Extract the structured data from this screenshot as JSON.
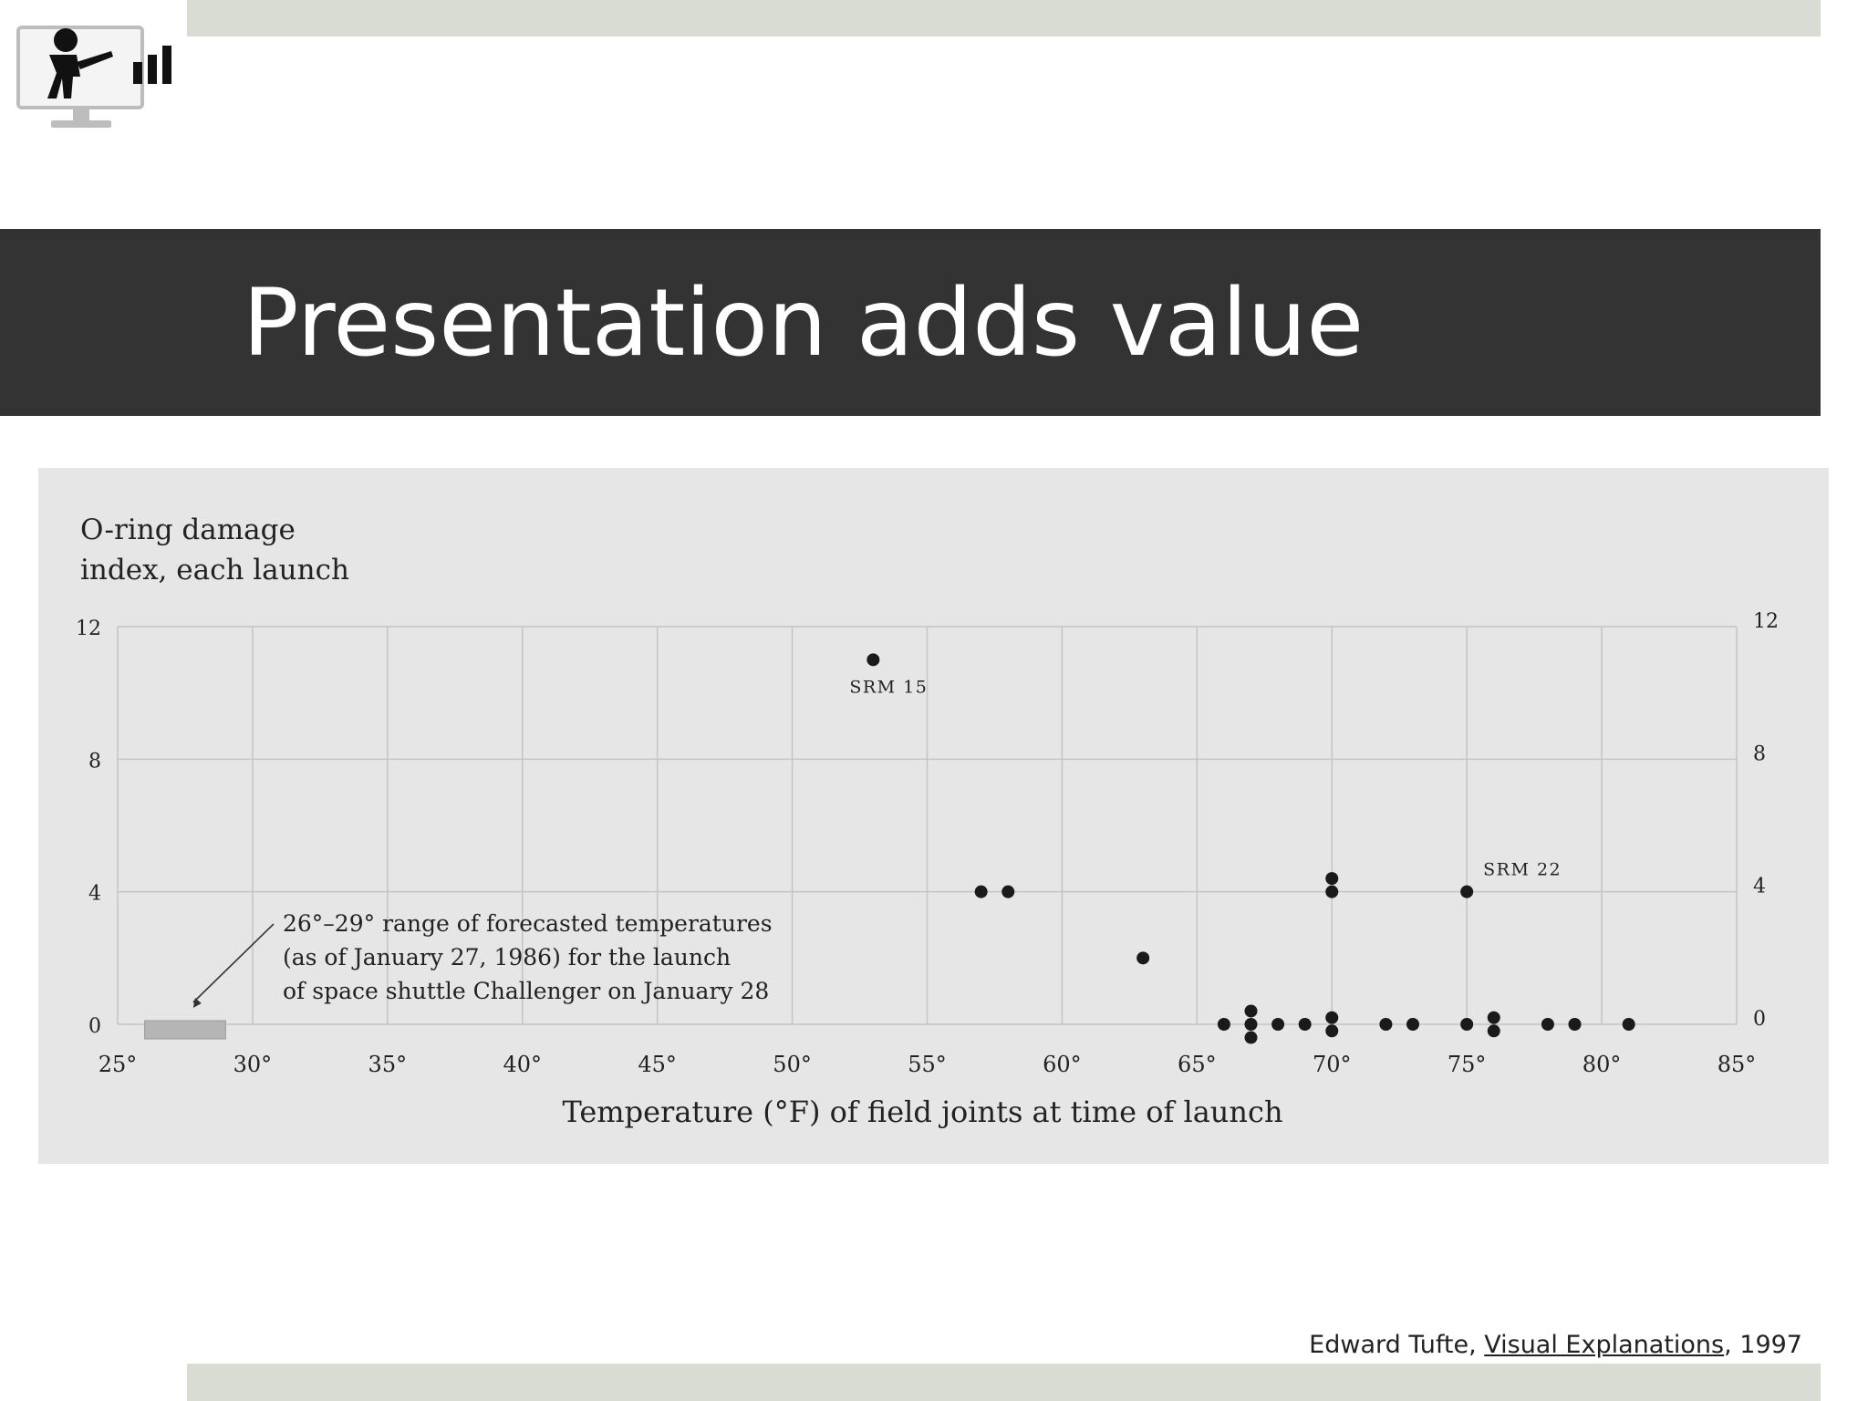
{
  "slide": {
    "title": "Presentation adds value",
    "credit": {
      "author": "Edward Tufte, ",
      "book": "Visual Explanations",
      "year": ", 1997"
    }
  },
  "logo": {
    "icon": "presenter-with-bar-chart-icon"
  },
  "colors": {
    "title_bar": "#333333",
    "strip": "#d9dcd3",
    "chart_panel": "#e6e6e6",
    "grid": "#c4c4c4",
    "points": "#1a1a1a",
    "forecast_range": "#b5b5b5"
  },
  "chart_data": {
    "type": "scatter",
    "title": "",
    "ylabel": [
      "O-ring damage",
      "index, each launch"
    ],
    "xlabel": "Temperature (°F) of field joints at time of launch",
    "xlim": [
      25,
      85
    ],
    "ylim": [
      0,
      12
    ],
    "x_ticks": [
      25,
      30,
      35,
      40,
      45,
      50,
      55,
      60,
      65,
      70,
      75,
      80,
      85
    ],
    "x_tick_labels": [
      "25°",
      "30°",
      "35°",
      "40°",
      "45°",
      "50°",
      "55°",
      "60°",
      "65°",
      "70°",
      "75°",
      "80°",
      "85°"
    ],
    "y_ticks": [
      0,
      4,
      8,
      12
    ],
    "y_tick_labels": [
      "0",
      "4",
      "8",
      "12"
    ],
    "grid": true,
    "points": [
      {
        "x": 53,
        "y": 11
      },
      {
        "x": 57,
        "y": 4
      },
      {
        "x": 58,
        "y": 4
      },
      {
        "x": 63,
        "y": 2
      },
      {
        "x": 70,
        "y": 4.4
      },
      {
        "x": 70,
        "y": 4
      },
      {
        "x": 75,
        "y": 4
      },
      {
        "x": 66,
        "y": 0
      },
      {
        "x": 67,
        "y": 0.4
      },
      {
        "x": 67,
        "y": 0
      },
      {
        "x": 67,
        "y": -0.4
      },
      {
        "x": 68,
        "y": 0
      },
      {
        "x": 69,
        "y": 0
      },
      {
        "x": 70,
        "y": 0.2
      },
      {
        "x": 70,
        "y": -0.2
      },
      {
        "x": 72,
        "y": 0
      },
      {
        "x": 73,
        "y": 0
      },
      {
        "x": 75,
        "y": 0
      },
      {
        "x": 76,
        "y": 0.2
      },
      {
        "x": 76,
        "y": -0.2
      },
      {
        "x": 78,
        "y": 0
      },
      {
        "x": 79,
        "y": 0
      },
      {
        "x": 81,
        "y": 0
      }
    ],
    "point_labels": [
      {
        "text": "SRM 15",
        "x": 53,
        "y": 11
      },
      {
        "text": "SRM 22",
        "x": 75,
        "y": 4
      }
    ],
    "forecast_range": {
      "x": [
        26,
        29
      ]
    },
    "annotation": [
      "26°–29° range of forecasted temperatures",
      "(as of January 27, 1986) for the launch",
      "of space shuttle Challenger on January 28"
    ]
  }
}
